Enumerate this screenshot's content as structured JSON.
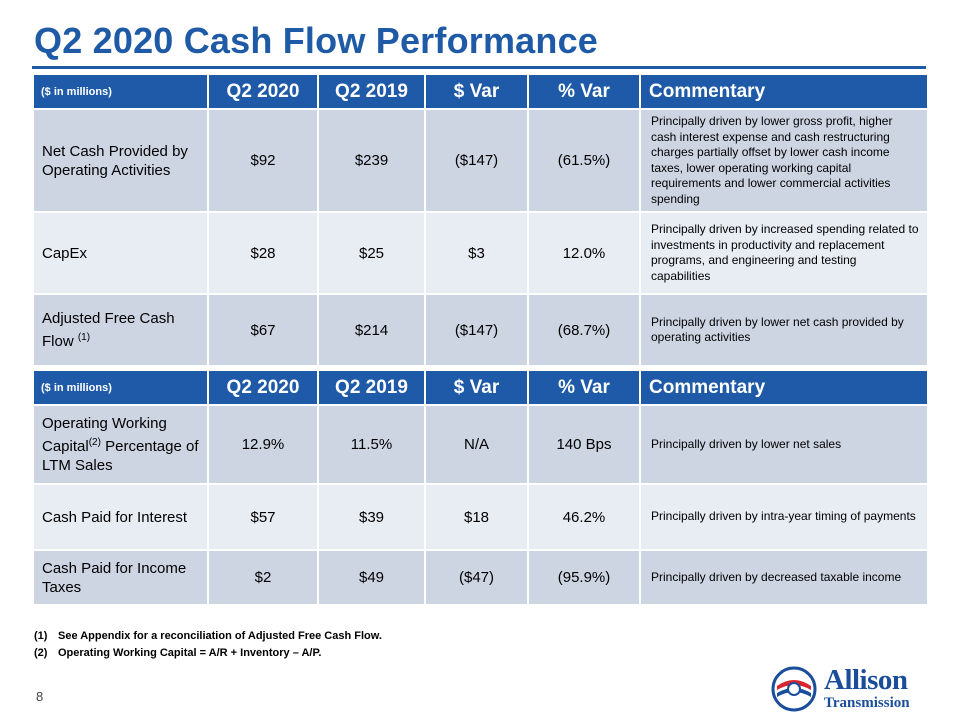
{
  "title": "Q2 2020 Cash Flow Performance",
  "tables": [
    {
      "headers": [
        "($ in millions)",
        "Q2 2020",
        "Q2 2019",
        "$ Var",
        "% Var",
        "Commentary"
      ],
      "rows": [
        {
          "label": "Net Cash Provided by Operating Activities",
          "q2_2020": "$92",
          "q2_2019": "$239",
          "dollar_var": "($147)",
          "pct_var": "(61.5%)",
          "commentary": "Principally driven by lower gross profit, higher cash interest expense and cash restructuring charges partially offset by lower cash income taxes, lower operating working capital requirements and lower commercial activities spending"
        },
        {
          "label": "CapEx",
          "q2_2020": "$28",
          "q2_2019": "$25",
          "dollar_var": "$3",
          "pct_var": "12.0%",
          "commentary": "Principally driven by increased spending related to investments in productivity and replacement programs, and engineering and testing capabilities"
        },
        {
          "label": "Adjusted Free Cash Flow",
          "label_sup": "(1)",
          "q2_2020": "$67",
          "q2_2019": "$214",
          "dollar_var": "($147)",
          "pct_var": "(68.7%)",
          "commentary": "Principally driven by lower net cash provided by operating activities"
        }
      ]
    },
    {
      "headers": [
        "($ in millions)",
        "Q2 2020",
        "Q2 2019",
        "$ Var",
        "% Var",
        "Commentary"
      ],
      "rows": [
        {
          "label_pre": "Operating Working Capital",
          "label_sup": "(2)",
          "label_post": " Percentage of LTM Sales",
          "q2_2020": "12.9%",
          "q2_2019": "11.5%",
          "dollar_var": "N/A",
          "pct_var": "140 Bps",
          "commentary": "Principally driven by lower net sales"
        },
        {
          "label": "Cash Paid for Interest",
          "q2_2020": "$57",
          "q2_2019": "$39",
          "dollar_var": "$18",
          "pct_var": "46.2%",
          "commentary": "Principally driven by intra-year timing of payments"
        },
        {
          "label": "Cash Paid for Income Taxes",
          "q2_2020": "$2",
          "q2_2019": "$49",
          "dollar_var": "($47)",
          "pct_var": "(95.9%)",
          "commentary": "Principally driven by decreased taxable income"
        }
      ]
    }
  ],
  "footnotes": [
    {
      "num": "(1)",
      "text": "See Appendix for a reconciliation of Adjusted Free Cash Flow."
    },
    {
      "num": "(2)",
      "text": "Operating Working Capital = A/R + Inventory – A/P."
    }
  ],
  "page_number": "8",
  "logo": {
    "line1": "Allison",
    "line2": "Transmission"
  },
  "colors": {
    "brand_blue": "#1e5aa8",
    "row_dark": "#cdd5e3",
    "row_light": "#e8ecf3"
  }
}
